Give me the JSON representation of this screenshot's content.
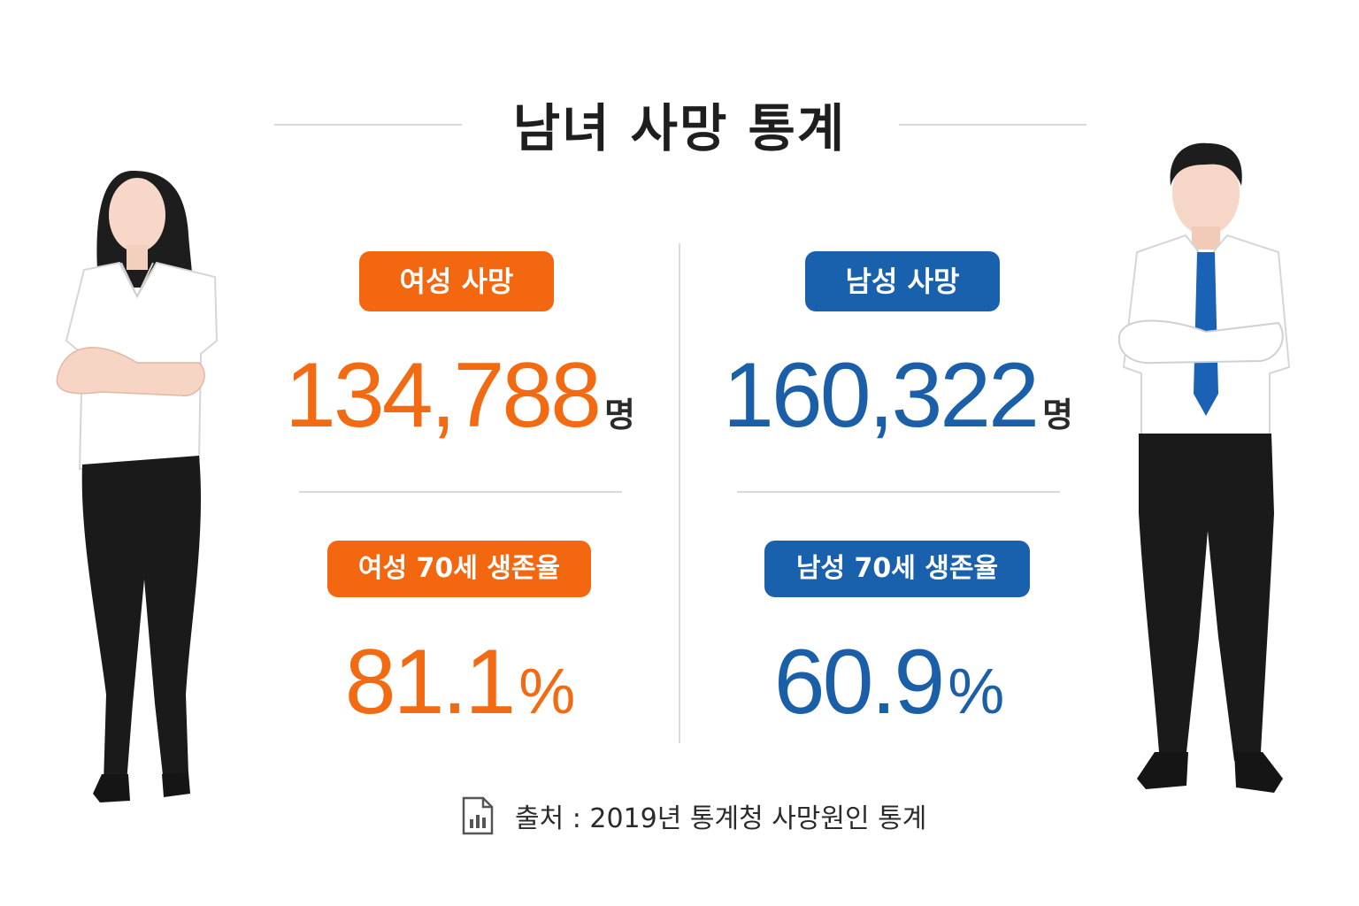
{
  "header": {
    "title": "남녀 사망 통계"
  },
  "female": {
    "death_label": "여성 사망",
    "death_count": "134,788",
    "death_unit": "명",
    "survival_label": "여성 70세 생존율",
    "survival_rate": "81.1",
    "survival_unit": "%"
  },
  "male": {
    "death_label": "남성 사망",
    "death_count": "160,322",
    "death_unit": "명",
    "survival_label": "남성 70세 생존율",
    "survival_rate": "60.9",
    "survival_unit": "%"
  },
  "footer": {
    "source": "출처 : 2019년 통계청 사망원인 통계",
    "icon": "chart-document-icon"
  },
  "colors": {
    "female_accent": "#f2670f",
    "male_accent": "#1a61ad",
    "divider": "#d9d9d9"
  }
}
